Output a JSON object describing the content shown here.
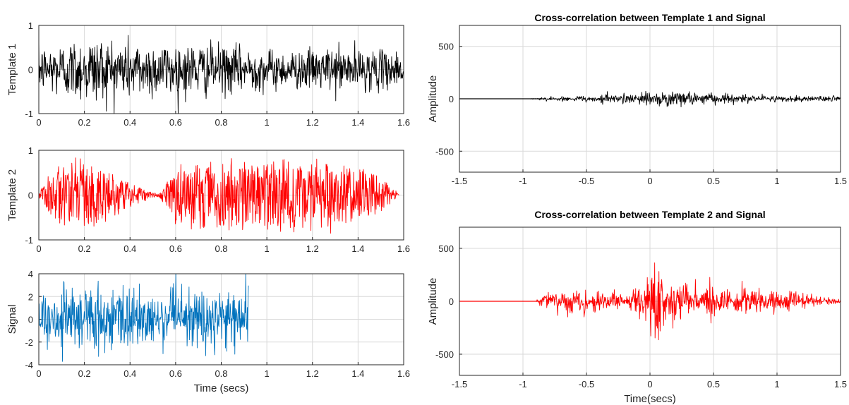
{
  "colors": {
    "template1": "#000000",
    "template2": "#ff0000",
    "signal": "#0072bd",
    "grid": "#d9d9d9",
    "axis": "#262626"
  },
  "chart_data": [
    {
      "type": "line",
      "ylabel": "Template 1",
      "xlabel": "",
      "title": "",
      "xlim": [
        0,
        1.6
      ],
      "ylim": [
        -1,
        1
      ],
      "xticks": [
        "0",
        "0.2",
        "0.4",
        "0.6",
        "0.8",
        "1",
        "1.2",
        "1.4",
        "1.6"
      ],
      "yticks": [
        "-1",
        "0",
        "1"
      ],
      "grid": true,
      "series": [
        {
          "color": "#000000",
          "signal": "noise",
          "x_range": [
            0,
            1.6
          ],
          "envelope": [
            [
              0,
              0.55
            ],
            [
              0.1,
              0.7
            ],
            [
              0.25,
              0.85
            ],
            [
              0.45,
              0.7
            ],
            [
              0.7,
              0.65
            ],
            [
              0.9,
              0.55
            ],
            [
              1.1,
              0.45
            ],
            [
              1.3,
              0.55
            ],
            [
              1.45,
              0.5
            ],
            [
              1.6,
              0.4
            ]
          ]
        }
      ]
    },
    {
      "type": "line",
      "ylabel": "Template 2",
      "xlabel": "",
      "title": "",
      "xlim": [
        0,
        1.6
      ],
      "ylim": [
        -1,
        1
      ],
      "xticks": [
        "0",
        "0.2",
        "0.4",
        "0.6",
        "0.8",
        "1",
        "1.2",
        "1.4",
        "1.6"
      ],
      "yticks": [
        "-1",
        "0",
        "1"
      ],
      "grid": true,
      "series": [
        {
          "color": "#ff0000",
          "signal": "noise",
          "x_range": [
            0,
            1.58
          ],
          "envelope": [
            [
              0,
              0.05
            ],
            [
              0.05,
              0.6
            ],
            [
              0.12,
              0.85
            ],
            [
              0.22,
              0.8
            ],
            [
              0.35,
              0.45
            ],
            [
              0.48,
              0.08
            ],
            [
              0.53,
              0.05
            ],
            [
              0.6,
              0.7
            ],
            [
              0.8,
              0.85
            ],
            [
              1.1,
              0.85
            ],
            [
              1.3,
              0.8
            ],
            [
              1.45,
              0.6
            ],
            [
              1.55,
              0.2
            ],
            [
              1.58,
              0.0
            ]
          ]
        }
      ]
    },
    {
      "type": "line",
      "ylabel": "Signal",
      "xlabel": "Time (secs)",
      "title": "",
      "xlim": [
        0,
        1.6
      ],
      "ylim": [
        -4,
        4
      ],
      "xticks": [
        "0",
        "0.2",
        "0.4",
        "0.6",
        "0.8",
        "1",
        "1.2",
        "1.4",
        "1.6"
      ],
      "yticks": [
        "-4",
        "-2",
        "0",
        "2",
        "4"
      ],
      "grid": true,
      "series": [
        {
          "color": "#0072bd",
          "signal": "noise",
          "x_range": [
            0,
            0.92
          ],
          "envelope": [
            [
              0,
              2.6
            ],
            [
              0.2,
              3.3
            ],
            [
              0.4,
              3.0
            ],
            [
              0.6,
              2.6
            ],
            [
              0.8,
              2.7
            ],
            [
              0.92,
              2.6
            ]
          ]
        }
      ]
    },
    {
      "type": "line",
      "title": "Cross-correlation between Template 1 and Signal",
      "ylabel": "Amplitude",
      "xlabel": "",
      "xlim": [
        -1.5,
        1.5
      ],
      "ylim": [
        -700,
        700
      ],
      "xticks": [
        "-1.5",
        "-1",
        "-0.5",
        "0",
        "0.5",
        "1",
        "1.5"
      ],
      "yticks": [
        "-500",
        "0",
        "500"
      ],
      "grid": true,
      "series": [
        {
          "color": "#000000",
          "signal": "noise",
          "x_range": [
            -1.5,
            1.5
          ],
          "envelope": [
            [
              -1.5,
              0
            ],
            [
              -0.95,
              0
            ],
            [
              -0.85,
              15
            ],
            [
              -0.6,
              30
            ],
            [
              -0.3,
              45
            ],
            [
              0,
              60
            ],
            [
              0.2,
              80
            ],
            [
              0.5,
              50
            ],
            [
              0.9,
              35
            ],
            [
              1.2,
              30
            ],
            [
              1.5,
              25
            ]
          ]
        }
      ]
    },
    {
      "type": "line",
      "title": "Cross-correlation between Template 2 and Signal",
      "ylabel": "Amplitude",
      "xlabel": "Time(secs)",
      "xlim": [
        -1.5,
        1.5
      ],
      "ylim": [
        -700,
        700
      ],
      "xticks": [
        "-1.5",
        "-1",
        "-0.5",
        "0",
        "0.5",
        "1",
        "1.5"
      ],
      "yticks": [
        "-500",
        "0",
        "500"
      ],
      "grid": true,
      "series": [
        {
          "color": "#ff0000",
          "signal": "noise",
          "x_range": [
            -1.5,
            1.5
          ],
          "envelope": [
            [
              -1.5,
              0
            ],
            [
              -0.9,
              0
            ],
            [
              -0.85,
              70
            ],
            [
              -0.7,
              100
            ],
            [
              -0.55,
              160
            ],
            [
              -0.4,
              100
            ],
            [
              -0.25,
              90
            ],
            [
              -0.18,
              40
            ],
            [
              -0.1,
              170
            ],
            [
              -0.02,
              250
            ],
            [
              0.03,
              420
            ],
            [
              0.06,
              580
            ],
            [
              0.09,
              400
            ],
            [
              0.15,
              280
            ],
            [
              0.25,
              210
            ],
            [
              0.35,
              140
            ],
            [
              0.45,
              160
            ],
            [
              0.6,
              120
            ],
            [
              0.75,
              140
            ],
            [
              0.9,
              90
            ],
            [
              1.1,
              110
            ],
            [
              1.3,
              60
            ],
            [
              1.5,
              20
            ]
          ]
        }
      ]
    }
  ]
}
